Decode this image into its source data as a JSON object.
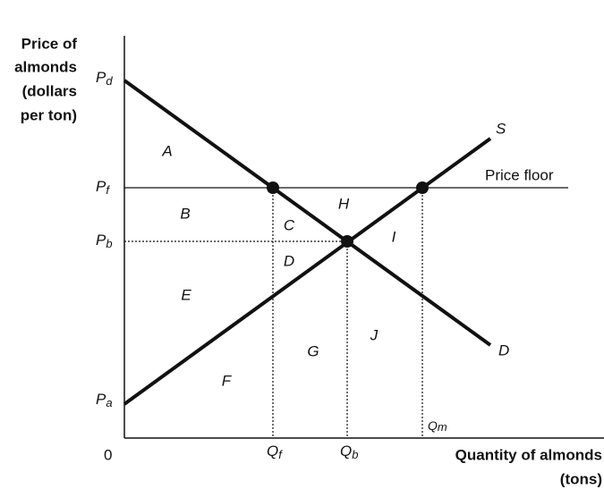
{
  "axes": {
    "y_label": [
      "Price of",
      "almonds",
      "(dollars",
      "per ton)"
    ],
    "x_label": [
      "Quantity of almonds",
      "(tons)"
    ],
    "origin": "0"
  },
  "price_labels": {
    "pd": {
      "main": "P",
      "sub": "d"
    },
    "pf": {
      "main": "P",
      "sub": "f"
    },
    "pb": {
      "main": "P",
      "sub": "b"
    },
    "pa": {
      "main": "P",
      "sub": "a"
    }
  },
  "quantity_labels": {
    "qf": {
      "main": "Q",
      "sub": "f"
    },
    "qb": {
      "main": "Q",
      "sub": "b"
    },
    "qm": {
      "main": "Q",
      "sub": "m"
    }
  },
  "curves": {
    "supply": "S",
    "demand": "D",
    "price_floor": "Price floor"
  },
  "regions": {
    "a": "A",
    "b": "B",
    "c": "C",
    "d": "D",
    "e": "E",
    "f": "F",
    "g": "G",
    "h": "H",
    "i": "I",
    "j": "J"
  }
}
